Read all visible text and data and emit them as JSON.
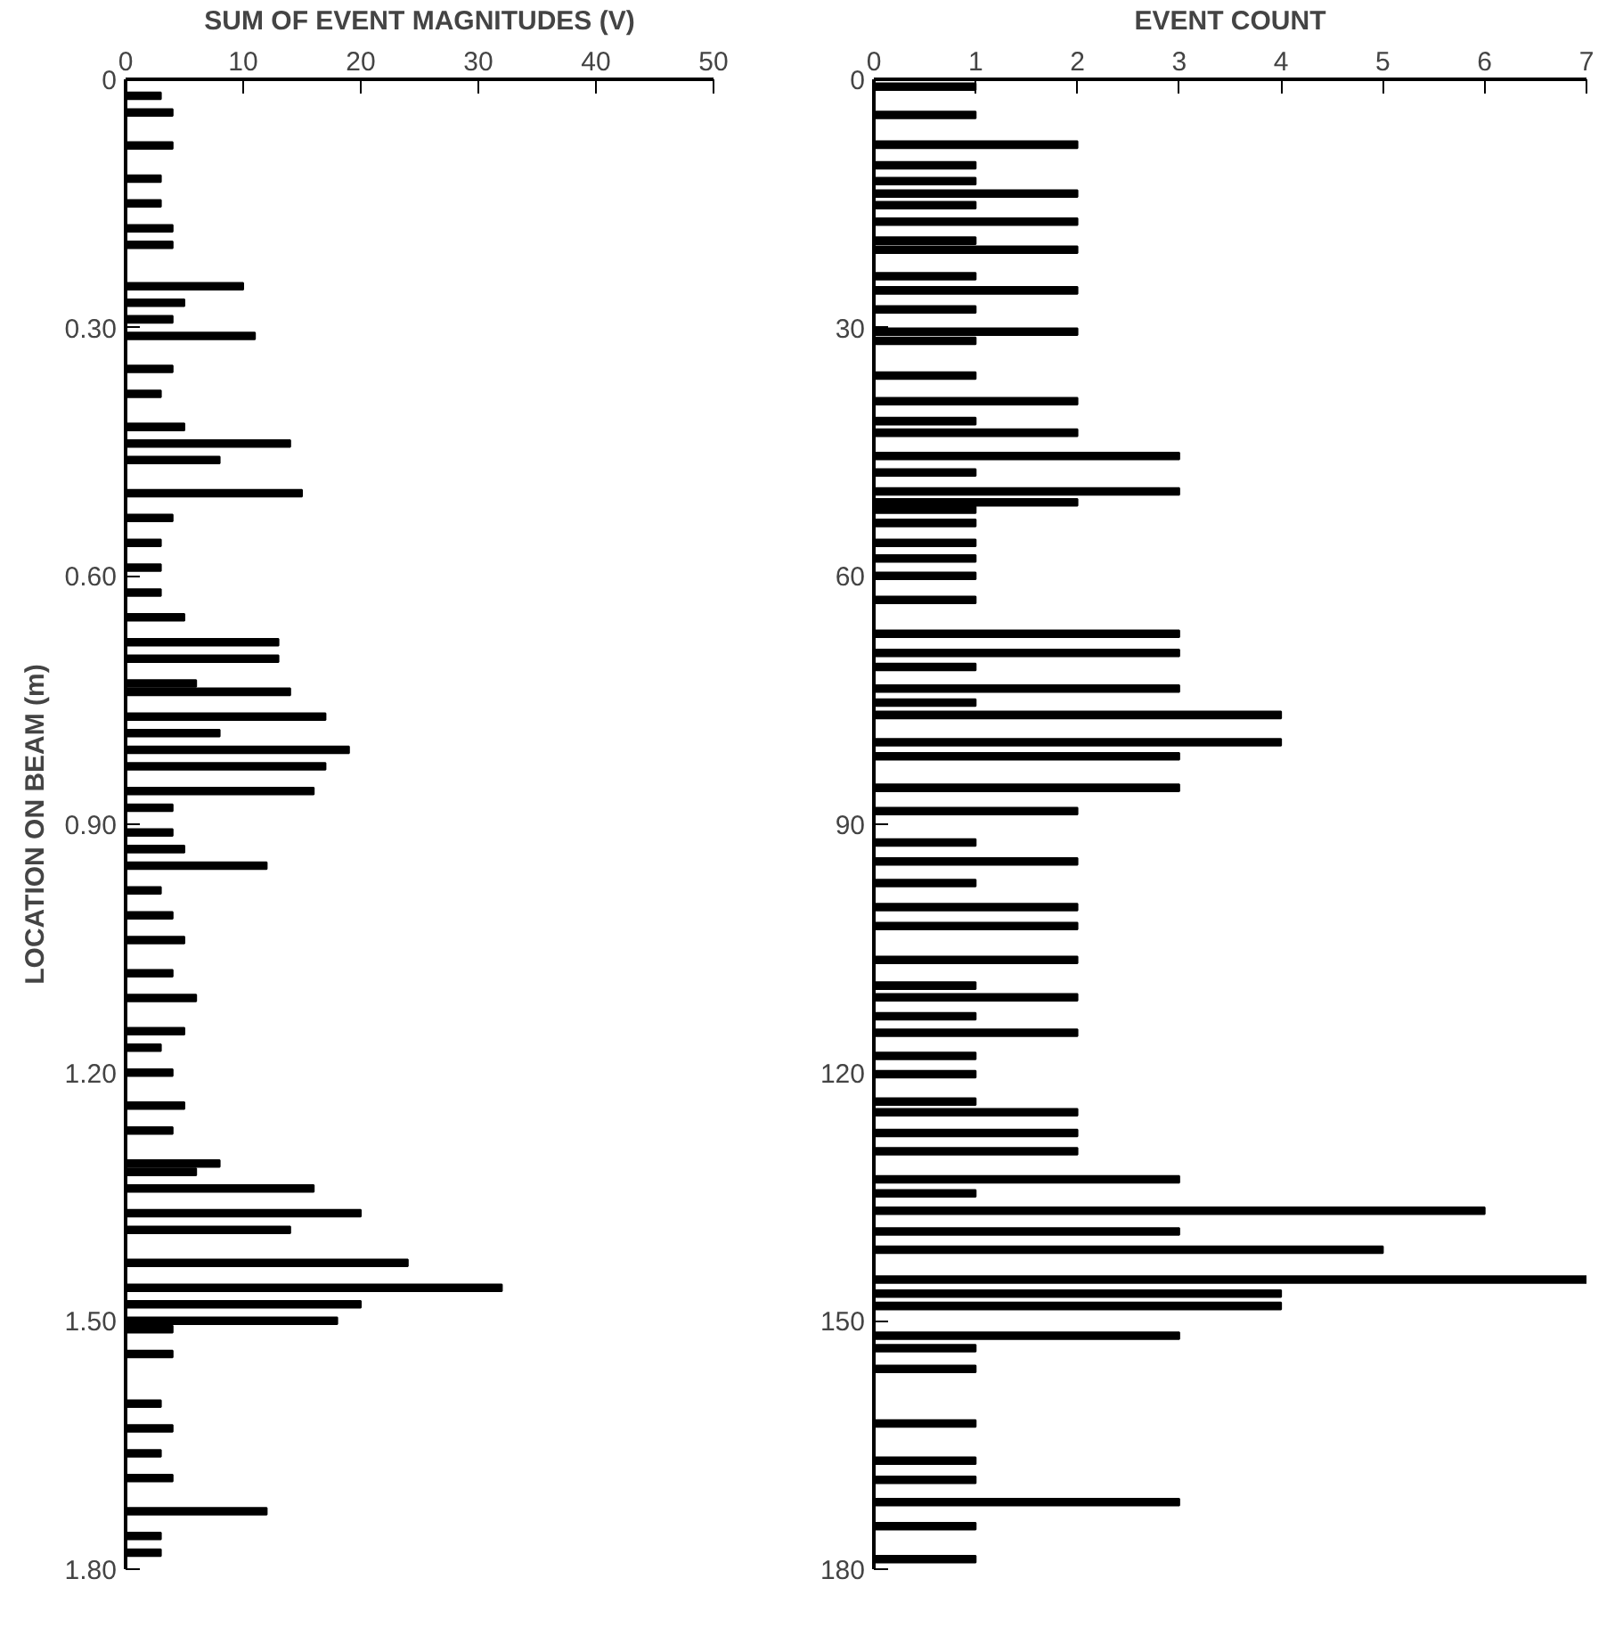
{
  "chart_data": [
    {
      "type": "bar",
      "orientation": "horizontal",
      "xlabel": "SUM OF EVENT MAGNITUDES (V)",
      "ylabel": "LOCATION ON BEAM (m)",
      "grid": false,
      "x": [
        0.02,
        0.04,
        0.08,
        0.12,
        0.15,
        0.18,
        0.2,
        0.25,
        0.27,
        0.29,
        0.31,
        0.35,
        0.38,
        0.42,
        0.44,
        0.46,
        0.5,
        0.53,
        0.56,
        0.59,
        0.62,
        0.65,
        0.68,
        0.7,
        0.73,
        0.74,
        0.77,
        0.79,
        0.81,
        0.83,
        0.86,
        0.88,
        0.91,
        0.93,
        0.95,
        0.98,
        1.01,
        1.04,
        1.08,
        1.11,
        1.15,
        1.17,
        1.2,
        1.24,
        1.27,
        1.31,
        1.32,
        1.34,
        1.37,
        1.39,
        1.43,
        1.46,
        1.48,
        1.5,
        1.51,
        1.54,
        1.6,
        1.63,
        1.66,
        1.69,
        1.73,
        1.76,
        1.78
      ],
      "series": [
        {
          "color": "#000000",
          "values": [
            3,
            4,
            4,
            3,
            3,
            4,
            4,
            10,
            5,
            4,
            11,
            4,
            3,
            5,
            14,
            8,
            15,
            4,
            3,
            3,
            3,
            5,
            13,
            13,
            6,
            14,
            17,
            8,
            19,
            17,
            16,
            4,
            4,
            5,
            12,
            3,
            4,
            5,
            4,
            6,
            5,
            3,
            4,
            5,
            4,
            8,
            6,
            16,
            20,
            14,
            24,
            32,
            20,
            18,
            4,
            4,
            3,
            4,
            3,
            4,
            12,
            3,
            3
          ]
        }
      ],
      "xlim": [
        0,
        50
      ],
      "xticks": [
        0,
        10,
        20,
        30,
        40,
        50
      ],
      "ylim": [
        1.8,
        0
      ],
      "yticks": [
        0,
        {
          "value": 0.3,
          "label": "0.30"
        },
        {
          "value": 0.6,
          "label": "0.60"
        },
        {
          "value": 0.9,
          "label": "0.90"
        },
        {
          "value": 1.2,
          "label": "1.20"
        },
        {
          "value": 1.5,
          "label": "1.50"
        },
        {
          "value": 1.8,
          "label": "1.80"
        }
      ]
    },
    {
      "type": "bar",
      "orientation": "horizontal",
      "xlabel": "EVENT COUNT",
      "grid": false,
      "x": [
        0.9,
        4.3,
        7.9,
        10.4,
        12.3,
        13.8,
        15.2,
        17.2,
        19.5,
        20.6,
        23.8,
        25.5,
        27.8,
        30.5,
        31.6,
        35.8,
        38.9,
        41.3,
        42.7,
        45.5,
        47.5,
        49.8,
        51.1,
        52.0,
        53.6,
        56.0,
        57.9,
        60.0,
        62.9,
        67.0,
        69.3,
        71.0,
        73.6,
        75.3,
        76.8,
        80.1,
        81.8,
        85.6,
        88.4,
        92.2,
        94.5,
        97.1,
        100.0,
        102.3,
        106.4,
        109.5,
        110.9,
        113.2,
        115.2,
        118.0,
        120.2,
        123.5,
        124.8,
        127.3,
        129.5,
        132.9,
        134.6,
        136.7,
        139.2,
        141.4,
        145.0,
        146.7,
        148.2,
        151.8,
        153.3,
        155.8,
        162.4,
        166.9,
        169.2,
        171.9,
        174.8,
        178.8
      ],
      "series": [
        {
          "color": "#000000",
          "values": [
            1,
            1,
            2,
            1,
            1,
            2,
            1,
            2,
            1,
            2,
            1,
            2,
            1,
            2,
            1,
            1,
            2,
            1,
            2,
            3,
            1,
            3,
            2,
            1,
            1,
            1,
            1,
            1,
            1,
            3,
            3,
            1,
            3,
            1,
            4,
            4,
            3,
            3,
            2,
            1,
            2,
            1,
            2,
            2,
            2,
            1,
            2,
            1,
            2,
            1,
            1,
            1,
            2,
            2,
            2,
            3,
            1,
            6,
            3,
            5,
            7,
            4,
            4,
            3,
            1,
            1,
            1,
            1,
            1,
            3,
            1,
            1
          ]
        }
      ],
      "xlim": [
        0,
        7
      ],
      "xticks": [
        0,
        1,
        2,
        3,
        4,
        5,
        6,
        7
      ],
      "ylim": [
        180,
        0
      ],
      "yticks": [
        0,
        30,
        60,
        90,
        120,
        150,
        180
      ]
    }
  ]
}
